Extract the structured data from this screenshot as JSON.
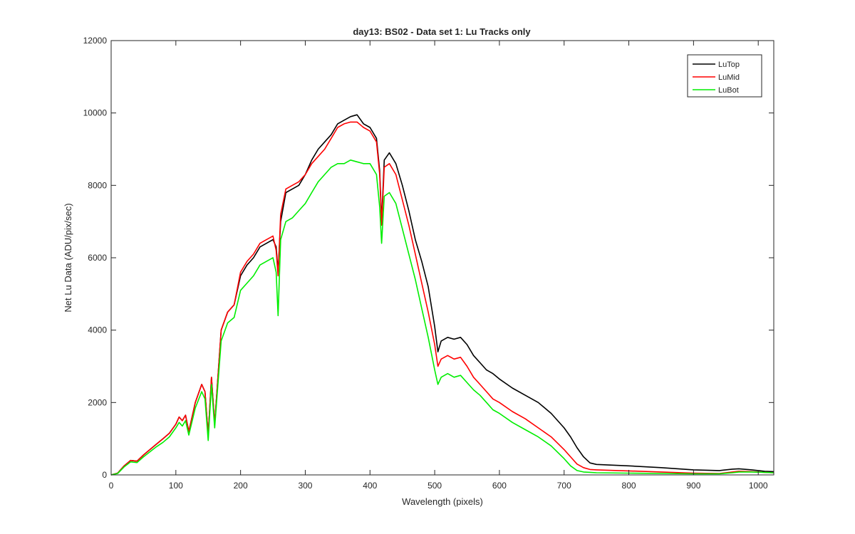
{
  "chart_data": {
    "type": "line",
    "title": "day13: BS02 - Data set 1: Lu Tracks only",
    "xlabel": "Wavelength (pixels)",
    "ylabel": "Net Lu Data (ADU/pix/sec)",
    "xlim": [
      0,
      1024
    ],
    "ylim": [
      0,
      12000
    ],
    "xticks": [
      0,
      100,
      200,
      300,
      400,
      500,
      600,
      700,
      800,
      900,
      1000
    ],
    "yticks": [
      0,
      2000,
      4000,
      6000,
      8000,
      10000,
      12000
    ],
    "grid": false,
    "legend_position": "top-right",
    "series": [
      {
        "name": "LuTop",
        "color": "#000000",
        "x": [
          0,
          10,
          20,
          30,
          40,
          50,
          60,
          70,
          80,
          90,
          100,
          105,
          110,
          115,
          120,
          130,
          140,
          145,
          150,
          155,
          160,
          170,
          180,
          190,
          200,
          210,
          220,
          230,
          240,
          250,
          255,
          258,
          262,
          270,
          280,
          290,
          300,
          310,
          320,
          330,
          340,
          350,
          360,
          370,
          380,
          390,
          400,
          410,
          415,
          418,
          422,
          430,
          440,
          450,
          460,
          470,
          480,
          490,
          500,
          505,
          510,
          520,
          530,
          540,
          550,
          560,
          570,
          580,
          590,
          600,
          620,
          640,
          660,
          680,
          700,
          710,
          720,
          730,
          740,
          750,
          800,
          850,
          900,
          940,
          960,
          970,
          990,
          1010,
          1024
        ],
        "y": [
          0,
          50,
          250,
          400,
          380,
          550,
          700,
          850,
          1000,
          1150,
          1400,
          1600,
          1500,
          1650,
          1200,
          2000,
          2500,
          2300,
          1100,
          2700,
          1400,
          4000,
          4500,
          4700,
          5500,
          5800,
          6000,
          6300,
          6400,
          6500,
          6300,
          5600,
          7000,
          7800,
          7900,
          8000,
          8300,
          8700,
          9000,
          9200,
          9400,
          9700,
          9800,
          9900,
          9950,
          9700,
          9600,
          9300,
          8400,
          7000,
          8700,
          8900,
          8600,
          8000,
          7300,
          6500,
          5900,
          5200,
          4100,
          3400,
          3700,
          3800,
          3750,
          3800,
          3600,
          3300,
          3100,
          2900,
          2800,
          2650,
          2400,
          2200,
          2000,
          1700,
          1300,
          1050,
          750,
          500,
          330,
          290,
          250,
          200,
          140,
          120,
          160,
          170,
          140,
          100,
          90
        ]
      },
      {
        "name": "LuMid",
        "color": "#ff0000",
        "x": [
          0,
          10,
          20,
          30,
          40,
          50,
          60,
          70,
          80,
          90,
          100,
          105,
          110,
          115,
          120,
          130,
          140,
          145,
          150,
          155,
          160,
          170,
          180,
          190,
          200,
          210,
          220,
          230,
          240,
          250,
          255,
          258,
          262,
          270,
          280,
          290,
          300,
          310,
          320,
          330,
          340,
          350,
          360,
          370,
          380,
          390,
          400,
          410,
          415,
          418,
          422,
          430,
          440,
          450,
          460,
          470,
          480,
          490,
          500,
          505,
          510,
          520,
          530,
          540,
          550,
          560,
          570,
          580,
          590,
          600,
          620,
          640,
          660,
          680,
          700,
          710,
          720,
          730,
          740,
          750,
          800,
          850,
          900,
          940,
          960,
          970,
          990,
          1010,
          1024
        ],
        "y": [
          0,
          50,
          250,
          400,
          380,
          550,
          700,
          850,
          1000,
          1150,
          1400,
          1600,
          1500,
          1650,
          1200,
          2000,
          2500,
          2300,
          1100,
          2700,
          1400,
          4000,
          4500,
          4700,
          5600,
          5900,
          6100,
          6400,
          6500,
          6600,
          6200,
          5500,
          7200,
          7900,
          8000,
          8100,
          8300,
          8600,
          8800,
          9000,
          9300,
          9600,
          9700,
          9750,
          9750,
          9600,
          9500,
          9200,
          8300,
          6900,
          8500,
          8600,
          8300,
          7600,
          6900,
          6100,
          5300,
          4500,
          3600,
          3000,
          3200,
          3300,
          3200,
          3250,
          3000,
          2700,
          2500,
          2300,
          2100,
          2000,
          1750,
          1550,
          1300,
          1050,
          700,
          500,
          300,
          200,
          150,
          140,
          110,
          80,
          50,
          40,
          80,
          100,
          90,
          70,
          60
        ]
      },
      {
        "name": "LuBot",
        "color": "#00ee00",
        "x": [
          0,
          10,
          20,
          30,
          40,
          50,
          60,
          70,
          80,
          90,
          100,
          105,
          110,
          115,
          120,
          130,
          140,
          145,
          150,
          155,
          160,
          170,
          180,
          190,
          200,
          210,
          220,
          230,
          240,
          250,
          255,
          258,
          262,
          270,
          280,
          290,
          300,
          310,
          320,
          330,
          340,
          350,
          360,
          370,
          380,
          390,
          400,
          410,
          415,
          418,
          422,
          430,
          440,
          450,
          460,
          470,
          480,
          490,
          500,
          505,
          510,
          520,
          530,
          540,
          550,
          560,
          570,
          580,
          590,
          600,
          620,
          640,
          660,
          680,
          700,
          710,
          720,
          730,
          740,
          750,
          800,
          850,
          900,
          940,
          960,
          970,
          990,
          1010,
          1024
        ],
        "y": [
          0,
          40,
          220,
          360,
          340,
          500,
          640,
          780,
          900,
          1050,
          1300,
          1450,
          1350,
          1500,
          1100,
          1850,
          2300,
          2100,
          950,
          2500,
          1300,
          3700,
          4200,
          4350,
          5100,
          5300,
          5500,
          5800,
          5900,
          6000,
          5600,
          4400,
          6500,
          7000,
          7100,
          7300,
          7500,
          7800,
          8100,
          8300,
          8500,
          8600,
          8600,
          8700,
          8650,
          8600,
          8600,
          8300,
          7400,
          6400,
          7700,
          7800,
          7500,
          6800,
          6100,
          5400,
          4600,
          3800,
          2900,
          2500,
          2700,
          2800,
          2700,
          2750,
          2550,
          2350,
          2200,
          2000,
          1800,
          1700,
          1450,
          1250,
          1050,
          800,
          450,
          250,
          120,
          80,
          70,
          60,
          50,
          40,
          30,
          30,
          60,
          80,
          80,
          70,
          60
        ]
      }
    ]
  }
}
